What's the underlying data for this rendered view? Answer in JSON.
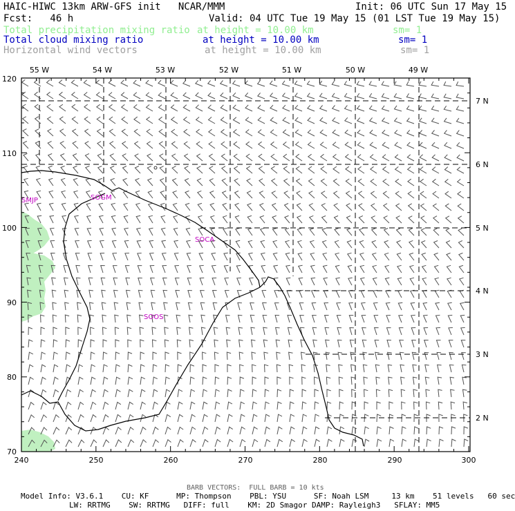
{
  "header": {
    "line1_left": "HAIC-HIWC 13km ARW-GFS init   NCAR/MMM",
    "line1_right": "Init: 06 UTC Sun 17 May 15",
    "line2_left": "Fcst:   46 h",
    "line2_right": "Valid: 04 UTC Tue 19 May 15 (01 LST Tue 19 May 15)",
    "fields": [
      {
        "name": "Total precipitation mixing ratio",
        "height": "at height = 10.00 km",
        "sm": "sm= 1",
        "color": "#90ee90"
      },
      {
        "name": "Total cloud mixing ratio",
        "height": "at height = 10.00 km",
        "sm": "sm= 1",
        "color": "#0000c0"
      },
      {
        "name": "Horizontal wind vectors",
        "height": "at height = 10.00 km",
        "sm": "sm= 1",
        "color": "#a0a0a0"
      }
    ]
  },
  "map": {
    "x_ticks": [
      "240",
      "250",
      "260",
      "270",
      "280",
      "290",
      "300"
    ],
    "y_ticks": [
      "70",
      "80",
      "90",
      "100",
      "110",
      "120"
    ],
    "lon_labels": [
      "55 W",
      "54 W",
      "53 W",
      "52 W",
      "51 W",
      "50 W",
      "49 W"
    ],
    "lat_labels": [
      "7 N",
      "6 N",
      "5 N",
      "4 N",
      "3 N",
      "2 N"
    ],
    "stations": [
      {
        "id": "SMJP"
      },
      {
        "id": "SOGM"
      },
      {
        "id": "SOCA"
      },
      {
        "id": "SOOS"
      }
    ],
    "colors": {
      "precip": "#c0f0c0",
      "barb": "#404040",
      "coast": "#000000",
      "station": "#c000c0"
    }
  },
  "footer": {
    "barb_note": "BARB VECTORS:  FULL BARB = 10 kts",
    "line1": "Model Info: V3.6.1    CU: KF      MP: Thompson    PBL: YSU      SF: Noah LSM     13 km    51 levels   60 sec",
    "line2": "LW: RRTMG    SW: RRTMG   DIFF: full    KM: 2D Smagor DAMP: Rayleigh3   SFLAY: MM5"
  }
}
